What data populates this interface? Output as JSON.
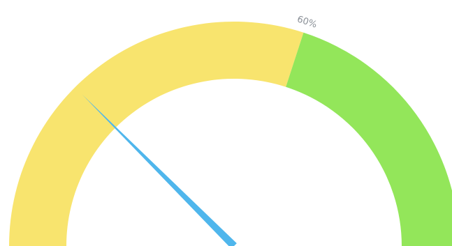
{
  "chart_data": {
    "type": "gauge",
    "min": 0,
    "max": 100,
    "value": 25,
    "bands": [
      {
        "from": 0,
        "to": 60,
        "color": "#f8e46e"
      },
      {
        "from": 60,
        "to": 100,
        "color": "#93e65a"
      }
    ],
    "threshold": {
      "value": 60,
      "label": "60%"
    },
    "needle_color": "#4fb6ec"
  }
}
